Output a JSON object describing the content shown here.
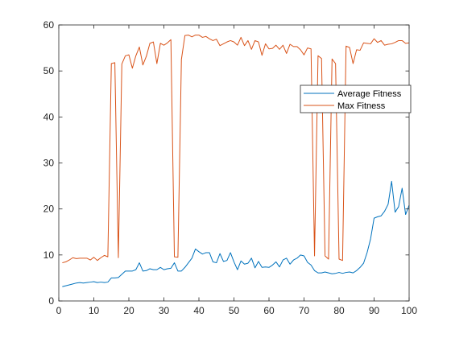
{
  "chart_data": {
    "type": "line",
    "title": "",
    "xlabel": "",
    "ylabel": "",
    "xlim": [
      0,
      100
    ],
    "ylim": [
      0,
      60
    ],
    "xticks": [
      0,
      10,
      20,
      30,
      40,
      50,
      60,
      70,
      80,
      90,
      100
    ],
    "yticks": [
      0,
      10,
      20,
      30,
      40,
      50,
      60
    ],
    "grid": false,
    "legend": {
      "position": "right-middle",
      "box": true
    },
    "series": [
      {
        "name": "Average Fitness",
        "color": "#0072BD",
        "x": [
          1,
          2,
          3,
          4,
          5,
          6,
          7,
          8,
          9,
          10,
          11,
          12,
          13,
          14,
          15,
          16,
          17,
          18,
          19,
          20,
          21,
          22,
          23,
          24,
          25,
          26,
          27,
          28,
          29,
          30,
          31,
          32,
          33,
          34,
          35,
          36,
          37,
          38,
          39,
          40,
          41,
          42,
          43,
          44,
          45,
          46,
          47,
          48,
          49,
          50,
          51,
          52,
          53,
          54,
          55,
          56,
          57,
          58,
          59,
          60,
          61,
          62,
          63,
          64,
          65,
          66,
          67,
          68,
          69,
          70,
          71,
          72,
          73,
          74,
          75,
          76,
          77,
          78,
          79,
          80,
          81,
          82,
          83,
          84,
          85,
          86,
          87,
          88,
          89,
          90,
          91,
          92,
          93,
          94,
          95,
          96,
          97,
          98,
          99,
          100
        ],
        "y": [
          3.1,
          3.3,
          3.5,
          3.7,
          3.9,
          4.0,
          3.9,
          4.0,
          4.1,
          4.2,
          4.0,
          4.1,
          4.0,
          4.1,
          5.0,
          5.0,
          5.1,
          5.8,
          6.5,
          6.5,
          6.5,
          6.8,
          8.3,
          6.5,
          6.6,
          7.0,
          6.8,
          6.8,
          7.3,
          6.8,
          7.0,
          7.1,
          8.3,
          6.5,
          6.5,
          7.3,
          8.3,
          9.3,
          11.3,
          10.7,
          10.2,
          10.5,
          10.5,
          8.5,
          8.3,
          10.3,
          8.6,
          8.8,
          10.5,
          8.5,
          6.8,
          8.7,
          8.0,
          8.2,
          9.3,
          7.2,
          8.6,
          7.3,
          7.4,
          7.3,
          7.8,
          8.5,
          7.4,
          8.9,
          9.3,
          8.0,
          8.9,
          9.3,
          10.0,
          9.8,
          8.4,
          7.8,
          6.6,
          6.1,
          6.1,
          6.3,
          6.1,
          5.9,
          6.0,
          6.2,
          6.0,
          6.2,
          6.3,
          6.1,
          6.6,
          7.3,
          8.2,
          10.5,
          13.5,
          18.0,
          18.3,
          18.5,
          19.5,
          21.0,
          26.0,
          19.3,
          20.5,
          24.5,
          18.8,
          20.8
        ]
      },
      {
        "name": "Max Fitness",
        "color": "#D95319",
        "x": [
          1,
          2,
          3,
          4,
          5,
          6,
          7,
          8,
          9,
          10,
          11,
          12,
          13,
          14,
          15,
          16,
          17,
          18,
          19,
          20,
          21,
          22,
          23,
          24,
          25,
          26,
          27,
          28,
          29,
          30,
          31,
          32,
          33,
          34,
          35,
          36,
          37,
          38,
          39,
          40,
          41,
          42,
          43,
          44,
          45,
          46,
          47,
          48,
          49,
          50,
          51,
          52,
          53,
          54,
          55,
          56,
          57,
          58,
          59,
          60,
          61,
          62,
          63,
          64,
          65,
          66,
          67,
          68,
          69,
          70,
          71,
          72,
          73,
          74,
          75,
          76,
          77,
          78,
          79,
          80,
          81,
          82,
          83,
          84,
          85,
          86,
          87,
          88,
          89,
          90,
          91,
          92,
          93,
          94,
          95,
          96,
          97,
          98,
          99,
          100
        ],
        "y": [
          8.3,
          8.5,
          8.9,
          9.4,
          9.2,
          9.3,
          9.3,
          9.3,
          8.9,
          9.5,
          8.8,
          9.4,
          9.9,
          9.6,
          51.6,
          51.8,
          9.4,
          51.5,
          53.3,
          53.5,
          50.6,
          53.3,
          55.2,
          51.3,
          53.2,
          56.0,
          56.3,
          51.6,
          56.0,
          55.6,
          56.1,
          56.8,
          9.6,
          9.5,
          52.5,
          57.7,
          57.8,
          57.4,
          57.8,
          57.8,
          57.3,
          57.5,
          57.0,
          56.6,
          56.9,
          55.5,
          55.9,
          56.3,
          56.6,
          56.3,
          55.6,
          57.3,
          55.5,
          56.6,
          54.7,
          56.6,
          56.3,
          53.4,
          55.9,
          54.8,
          54.9,
          55.6,
          54.7,
          55.6,
          53.8,
          55.8,
          55.3,
          55.3,
          54.6,
          53.5,
          55.0,
          54.8,
          9.8,
          53.3,
          52.7,
          9.8,
          9.1,
          52.6,
          51.6,
          9.1,
          8.8,
          55.4,
          55.1,
          51.6,
          54.6,
          54.5,
          56.1,
          56.0,
          55.9,
          57.0,
          56.2,
          56.6,
          55.6,
          55.8,
          55.9,
          56.2,
          56.6,
          56.6,
          56.0,
          56.1
        ]
      }
    ]
  }
}
